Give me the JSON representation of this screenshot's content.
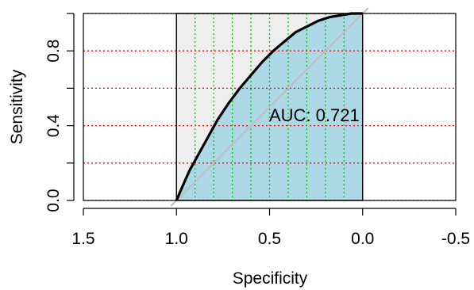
{
  "chart_data": {
    "type": "line",
    "title": "",
    "xlabel": "Specificity",
    "ylabel": "Sensitivity",
    "xlim": [
      1.5,
      -0.5
    ],
    "ylim": [
      0.0,
      1.0
    ],
    "x_reversed": true,
    "x_ticks": [
      "1.5",
      "1.0",
      "0.5",
      "0.0",
      "-0.5"
    ],
    "y_ticks": [
      "0.0",
      "0.4",
      "0.8"
    ],
    "auc_label": "AUC: 0.721",
    "grid": true,
    "colors": {
      "auc_fill": "#add8e6",
      "roc_region": "#eeeeee",
      "roc_line": "#000000",
      "diagonal": "#bfbfbf",
      "grid_horizontal": "#ff0000",
      "grid_vertical": "#00cc00"
    },
    "series": [
      {
        "specificity": [
          1.0,
          0.97,
          0.93,
          0.88,
          0.83,
          0.78,
          0.72,
          0.66,
          0.6,
          0.54,
          0.48,
          0.42,
          0.36,
          0.3,
          0.24,
          0.18,
          0.12,
          0.06,
          0.0
        ],
        "sensitivity": [
          0.0,
          0.07,
          0.16,
          0.25,
          0.34,
          0.43,
          0.52,
          0.6,
          0.67,
          0.74,
          0.8,
          0.85,
          0.9,
          0.93,
          0.96,
          0.98,
          0.99,
          1.0,
          1.0
        ]
      }
    ]
  }
}
